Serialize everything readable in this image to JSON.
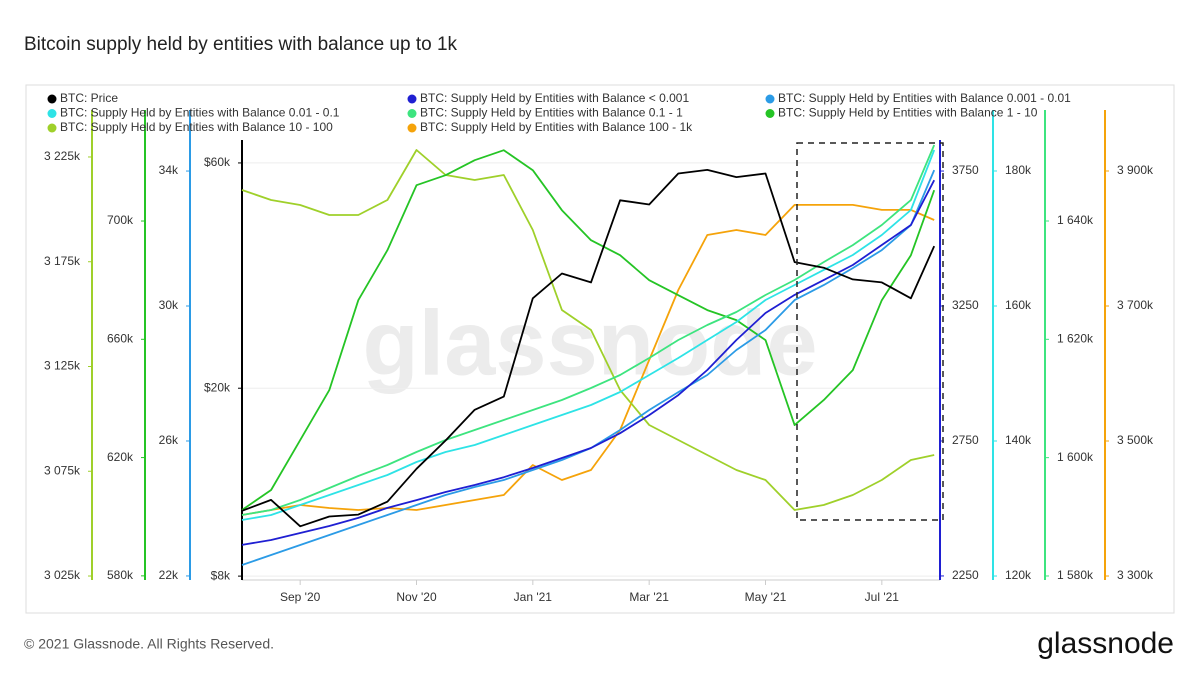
{
  "chart_data": {
    "type": "line",
    "title": "Bitcoin supply held by entities with balance up to 1k",
    "watermark": "glassnode",
    "footer": "© 2021 Glassnode. All Rights Reserved.",
    "logo": "glassnode",
    "grid": true,
    "xlim": [
      0,
      12
    ],
    "xticks": [
      {
        "value": 1,
        "label": "Sep '20"
      },
      {
        "value": 3,
        "label": "Nov '20"
      },
      {
        "value": 5,
        "label": "Jan '21"
      },
      {
        "value": 7,
        "label": "Mar '21"
      },
      {
        "value": 9,
        "label": "May '21"
      },
      {
        "value": 11,
        "label": "Jul '21"
      }
    ],
    "x": [
      0,
      0.5,
      1,
      1.5,
      2,
      2.5,
      3,
      3.5,
      4,
      4.5,
      5,
      5.5,
      6,
      6.5,
      7,
      7.5,
      8,
      8.5,
      9,
      9.5,
      10,
      10.5,
      11,
      11.5,
      11.9
    ],
    "series": [
      {
        "name": "BTC: Price",
        "color": "#000000",
        "log": true,
        "ylim": [
          7850,
          67100
        ],
        "yticks": [
          {
            "value": 60000,
            "label": "$60k"
          },
          {
            "value": 20000,
            "label": "$20k"
          },
          {
            "value": 8000,
            "label": "$8k"
          }
        ],
        "values": [
          11000,
          11600,
          10200,
          10700,
          10800,
          11500,
          13500,
          15500,
          18000,
          19200,
          31000,
          35000,
          33500,
          50000,
          49000,
          57000,
          58000,
          56000,
          57000,
          37000,
          36000,
          34000,
          33500,
          31000,
          40000
        ]
      },
      {
        "name": "BTC: Supply Held by Entities with Balance < 0.001",
        "color": "#1f1fd2",
        "ylim": [
          2235,
          3865
        ],
        "yticks": [
          3750,
          3250,
          2750,
          2250
        ],
        "values": [
          2365,
          2383,
          2409,
          2435,
          2465,
          2502,
          2531,
          2561,
          2587,
          2616,
          2650,
          2687,
          2724,
          2779,
          2846,
          2920,
          3013,
          3124,
          3224,
          3291,
          3346,
          3402,
          3476,
          3550,
          3716
        ]
      },
      {
        "name": "BTC: Supply Held by Entities with Balance 0.001 - 0.01",
        "color": "#2b9be6",
        "ylim": [
          21880,
          34920
        ],
        "yticks": [
          {
            "value": 34000,
            "label": "34k"
          },
          {
            "value": 30000,
            "label": "30k"
          },
          {
            "value": 26000,
            "label": "26k"
          },
          {
            "value": 22000,
            "label": "22k"
          }
        ],
        "values": [
          22324,
          22621,
          22917,
          23213,
          23510,
          23806,
          24102,
          24399,
          24636,
          24843,
          25139,
          25436,
          25791,
          26325,
          26917,
          27450,
          27954,
          28695,
          29288,
          30176,
          30621,
          31125,
          31658,
          32399,
          34028
        ]
      },
      {
        "name": "BTC: Supply Held by Entities with Balance 0.01 - 0.1",
        "color": "#2ee3e6",
        "ylim": [
          119410,
          184590
        ],
        "yticks": [
          {
            "value": 180000,
            "label": "180k"
          },
          {
            "value": 160000,
            "label": "160k"
          },
          {
            "value": 140000,
            "label": "140k"
          },
          {
            "value": 120000,
            "label": "120k"
          }
        ],
        "values": [
          128300,
          129040,
          130520,
          132000,
          133480,
          134970,
          136890,
          138370,
          139410,
          140890,
          142370,
          143850,
          145340,
          147260,
          149780,
          152300,
          154970,
          157630,
          160890,
          163110,
          165340,
          167560,
          170520,
          174220,
          183110
        ]
      },
      {
        "name": "BTC: Supply Held by Entities with Balance 0.1 - 1",
        "color": "#3de47f",
        "ylim": [
          1579320,
          1653690
        ],
        "yticks": [
          {
            "value": 1640000,
            "label": "1 640k"
          },
          {
            "value": 1620000,
            "label": "1 620k"
          },
          {
            "value": 1600000,
            "label": "1 600k"
          },
          {
            "value": 1580000,
            "label": "1 580k"
          }
        ],
        "values": [
          1590310,
          1591150,
          1592840,
          1594870,
          1596900,
          1598760,
          1600950,
          1602980,
          1604670,
          1606360,
          1608050,
          1609740,
          1611770,
          1613970,
          1616840,
          1619880,
          1622420,
          1624610,
          1627490,
          1630020,
          1633060,
          1635930,
          1639320,
          1643540,
          1652840
        ]
      },
      {
        "name": "BTC: Supply Held by Entities with Balance 1 - 10",
        "color": "#25c425",
        "ylim": [
          578600,
          727400
        ],
        "yticks": [
          {
            "value": 700000,
            "label": "700k"
          },
          {
            "value": 660000,
            "label": "660k"
          },
          {
            "value": 620000,
            "label": "620k"
          },
          {
            "value": 580000,
            "label": "580k"
          }
        ],
        "values": [
          602260,
          609020,
          625920,
          642820,
          673240,
          690140,
          712110,
          715490,
          720560,
          723940,
          717180,
          703660,
          693520,
          688450,
          680000,
          674930,
          669860,
          666480,
          659720,
          630990,
          639440,
          649580,
          673240,
          688450,
          710420
        ]
      },
      {
        "name": "BTC: Supply Held by Entities with Balance 10 - 100",
        "color": "#9fd02a",
        "ylim": [
          3023100,
          3233100
        ],
        "yticks": [
          {
            "value": 3225000,
            "label": "3 225k"
          },
          {
            "value": 3175000,
            "label": "3 175k"
          },
          {
            "value": 3125000,
            "label": "3 125k"
          },
          {
            "value": 3075000,
            "label": "3 075k"
          },
          {
            "value": 3025000,
            "label": "3 025k"
          }
        ],
        "values": [
          3209250,
          3204470,
          3202090,
          3197310,
          3197310,
          3204470,
          3228340,
          3216410,
          3214020,
          3216410,
          3190160,
          3151970,
          3142430,
          3113790,
          3097080,
          3089920,
          3082760,
          3075600,
          3070830,
          3056510,
          3058900,
          3063670,
          3070830,
          3080380,
          3082760
        ]
      },
      {
        "name": "BTC: Supply Held by Entities with Balance 100 - 1k",
        "color": "#f5a30a",
        "ylim": [
          3294100,
          3945900
        ],
        "yticks": [
          {
            "value": 3900000,
            "label": "3 900k"
          },
          {
            "value": 3700000,
            "label": "3 700k"
          },
          {
            "value": 3500000,
            "label": "3 500k"
          },
          {
            "value": 3300000,
            "label": "3 300k"
          }
        ],
        "values": [
          3390400,
          3397800,
          3405200,
          3400800,
          3397800,
          3400800,
          3397800,
          3405200,
          3412600,
          3420000,
          3464500,
          3442300,
          3457100,
          3516300,
          3620000,
          3723700,
          3805200,
          3812600,
          3805200,
          3849700,
          3849700,
          3849700,
          3842300,
          3842300,
          3827400
        ]
      }
    ]
  }
}
